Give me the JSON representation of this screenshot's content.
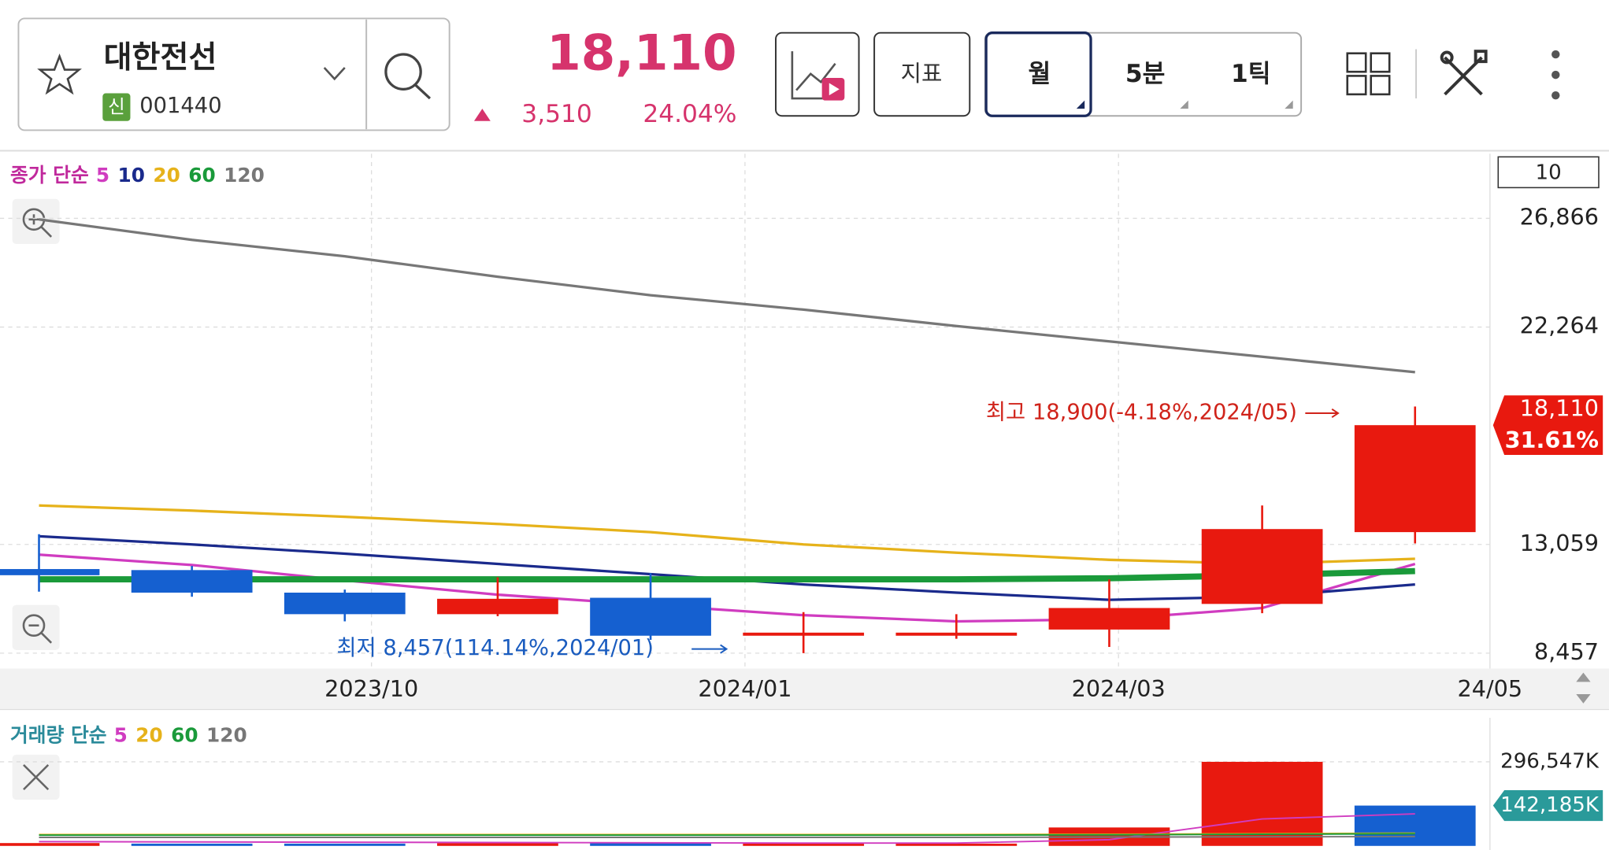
{
  "header": {
    "name": "대한전선",
    "badge": "신",
    "code": "001440",
    "price": "18,110",
    "change": "3,510",
    "change_pct": "24.04%"
  },
  "buttons": {
    "indicator": "지표",
    "periods": [
      "월",
      "5분",
      "1틱"
    ]
  },
  "chart_data": [
    {
      "type": "candlestick",
      "legend_title": "종가 단순",
      "period_box": "10",
      "ylim": [
        7806,
        29600
      ],
      "yticks": [
        {
          "value": 26866,
          "label": "26,866"
        },
        {
          "value": 22264,
          "label": "22,264"
        },
        {
          "value": 13059,
          "label": "13,059"
        },
        {
          "value": 8457,
          "label": "8,457"
        }
      ],
      "x_labels": [
        "2023/10",
        "2024/01",
        "2024/03",
        "24/05"
      ],
      "grid": true,
      "up_color": "#e8190f",
      "down_color": "#1560d0",
      "open": [
        12017,
        11974,
        11019,
        10107,
        10801,
        9195,
        9195,
        9456,
        10541,
        13581
      ],
      "high": [
        13494,
        12148,
        11149,
        11670,
        11844,
        10194,
        10107,
        11583,
        14709,
        18900
      ],
      "low": [
        11062,
        10845,
        9803,
        10020,
        9021,
        8457,
        9065,
        8718,
        10150,
        13103
      ],
      "close": [
        11757,
        11019,
        10107,
        10758,
        9195,
        9325,
        9325,
        10368,
        13711,
        18110
      ],
      "series": [
        {
          "name": "5",
          "color": "#d03cc0",
          "values": [
            12625,
            12191,
            11540,
            10932,
            10498,
            10063,
            9803,
            9890,
            10368,
            12235
          ]
        },
        {
          "name": "10",
          "color": "#1a2a8c",
          "values": [
            13407,
            13060,
            12669,
            12235,
            11800,
            11366,
            11019,
            10715,
            10845,
            11366
          ]
        },
        {
          "name": "20",
          "color": "#e6b21a",
          "values": [
            14709,
            14492,
            14232,
            13928,
            13581,
            13060,
            12712,
            12408,
            12235,
            12452
          ]
        },
        {
          "name": "60",
          "color": "#1a9a3a",
          "values": [
            11583,
            11583,
            11583,
            11583,
            11583,
            11583,
            11583,
            11627,
            11757,
            11931
          ]
        },
        {
          "name": "120",
          "color": "#777777",
          "values": [
            26824,
            25955,
            25261,
            24393,
            23611,
            23003,
            22308,
            21657,
            21006,
            20354
          ]
        }
      ],
      "annotations": {
        "high": "최고 18,900(-4.18%,2024/05)",
        "low": "최저 8,457(114.14%,2024/01)"
      },
      "last_price": {
        "value": 18110,
        "label": "18,110"
      },
      "last_pct": {
        "value": 31.61,
        "label": "31.61%"
      }
    },
    {
      "type": "bar",
      "legend_title": "거래량 단순",
      "ylim": [
        0,
        452000
      ],
      "yticks": [
        {
          "value": 296547,
          "label": "296,547K"
        }
      ],
      "values": [
        10000,
        8000,
        8000,
        10000,
        12000,
        8000,
        8000,
        65000,
        296547,
        142185
      ],
      "colors": [
        "#e8190f",
        "#1560d0",
        "#1560d0",
        "#e8190f",
        "#1560d0",
        "#e8190f",
        "#e8190f",
        "#e8190f",
        "#e8190f",
        "#1560d0"
      ],
      "series": [
        {
          "name": "5",
          "color": "#d03cc0",
          "values": [
            15000,
            14000,
            13000,
            12000,
            11000,
            10000,
            10000,
            22000,
            95000,
            113000
          ]
        },
        {
          "name": "20",
          "color": "#e6b21a",
          "values": [
            40000,
            40000,
            40000,
            40000,
            40000,
            40000,
            40000,
            41000,
            43000,
            45000
          ]
        },
        {
          "name": "60",
          "color": "#1a9a3a",
          "values": [
            38000,
            38000,
            38000,
            38000,
            38000,
            38000,
            38000,
            39000,
            41000,
            43000
          ]
        },
        {
          "name": "120",
          "color": "#777777",
          "values": [
            30000,
            30000,
            30000,
            30000,
            30000,
            30000,
            30000,
            31000,
            32000,
            33000
          ]
        }
      ],
      "last_value": {
        "value": 142185,
        "label": "142,185K"
      }
    }
  ]
}
